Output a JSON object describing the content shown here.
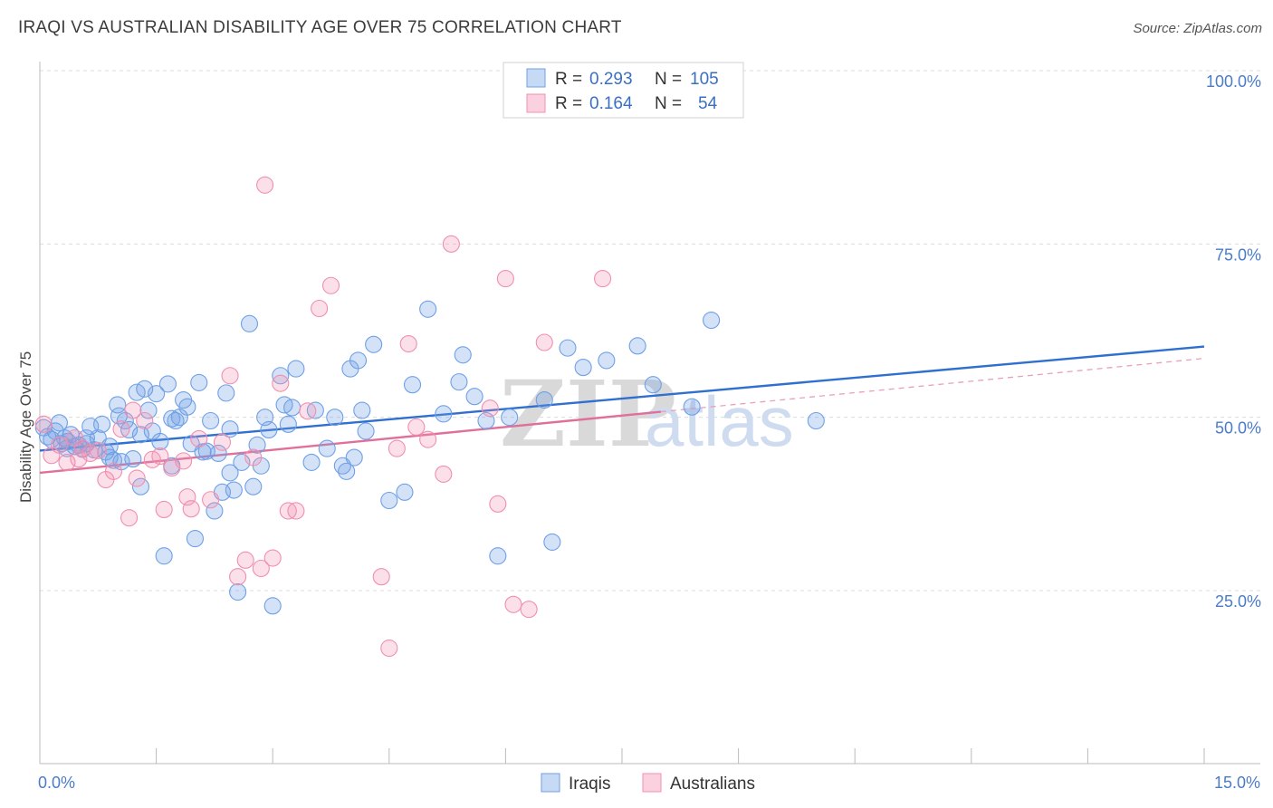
{
  "title": "IRAQI VS AUSTRALIAN DISABILITY AGE OVER 75 CORRELATION CHART",
  "source": "Source: ZipAtlas.com",
  "watermark": {
    "zip": "ZIP",
    "atlas": "atlas"
  },
  "legend": {
    "rows": [
      {
        "r_label": "R =",
        "r_value": "0.293",
        "n_label": "N =",
        "n_value": "105",
        "color": "#6fa0e6"
      },
      {
        "r_label": "R =",
        "r_value": "0.164",
        "n_label": "N =",
        "n_value": "54",
        "color": "#f08fb0"
      }
    ]
  },
  "bottom_legend": [
    "Iraqis",
    "Australians"
  ],
  "chart_data": {
    "type": "scatter",
    "title": "IRAQI VS AUSTRALIAN DISABILITY AGE OVER 75 CORRELATION CHART",
    "xlabel": "",
    "ylabel": "Disability Age Over 75",
    "xlim": [
      0,
      15
    ],
    "ylim": [
      5,
      105
    ],
    "x_tick_labels": [
      "0.0%",
      "15.0%"
    ],
    "y_ticks": [
      25,
      50,
      75,
      100
    ],
    "y_tick_labels": [
      "25.0%",
      "50.0%",
      "75.0%",
      "100.0%"
    ],
    "grid": "horizontal dashed",
    "legend_position": "top-center",
    "series": [
      {
        "name": "Iraqis",
        "color": "#6fa0e6",
        "trend": {
          "x": [
            0,
            15
          ],
          "y": [
            45.2,
            60.2
          ]
        },
        "points": [
          [
            0.05,
            48.5
          ],
          [
            0.1,
            47.2
          ],
          [
            0.15,
            46.8
          ],
          [
            0.2,
            48.0
          ],
          [
            0.25,
            49.2
          ],
          [
            0.28,
            46.2
          ],
          [
            0.32,
            47.0
          ],
          [
            0.36,
            46.5
          ],
          [
            0.4,
            47.5
          ],
          [
            0.45,
            45.8
          ],
          [
            0.5,
            46.0
          ],
          [
            0.55,
            45.4
          ],
          [
            0.6,
            46.2
          ],
          [
            0.65,
            48.7
          ],
          [
            0.7,
            45.3
          ],
          [
            0.75,
            47.0
          ],
          [
            0.8,
            49.0
          ],
          [
            0.85,
            45.0
          ],
          [
            0.9,
            44.2
          ],
          [
            0.95,
            43.8
          ],
          [
            1.0,
            51.8
          ],
          [
            1.02,
            50.2
          ],
          [
            1.05,
            43.6
          ],
          [
            1.1,
            49.5
          ],
          [
            1.15,
            48.2
          ],
          [
            1.2,
            44.0
          ],
          [
            1.25,
            53.6
          ],
          [
            1.3,
            40.0
          ],
          [
            1.35,
            54.1
          ],
          [
            1.4,
            51.0
          ],
          [
            1.45,
            48.0
          ],
          [
            1.5,
            53.4
          ],
          [
            1.55,
            46.5
          ],
          [
            1.6,
            30.0
          ],
          [
            1.65,
            54.8
          ],
          [
            1.7,
            43.0
          ],
          [
            1.75,
            49.5
          ],
          [
            1.8,
            50.0
          ],
          [
            1.85,
            52.5
          ],
          [
            1.9,
            51.5
          ],
          [
            1.95,
            46.2
          ],
          [
            2.0,
            32.5
          ],
          [
            2.05,
            55.0
          ],
          [
            2.1,
            45.0
          ],
          [
            2.15,
            45.1
          ],
          [
            2.2,
            49.5
          ],
          [
            2.25,
            36.5
          ],
          [
            2.3,
            44.8
          ],
          [
            2.35,
            39.2
          ],
          [
            2.4,
            53.5
          ],
          [
            2.45,
            48.3
          ],
          [
            2.5,
            39.5
          ],
          [
            2.55,
            24.8
          ],
          [
            2.6,
            43.5
          ],
          [
            2.7,
            63.5
          ],
          [
            2.75,
            40.0
          ],
          [
            2.8,
            46.0
          ],
          [
            2.85,
            43.0
          ],
          [
            2.9,
            50.0
          ],
          [
            2.95,
            48.2
          ],
          [
            3.0,
            22.8
          ],
          [
            3.1,
            56.0
          ],
          [
            3.15,
            51.8
          ],
          [
            3.2,
            49.0
          ],
          [
            3.25,
            51.4
          ],
          [
            3.3,
            57.0
          ],
          [
            3.5,
            43.5
          ],
          [
            3.55,
            51.0
          ],
          [
            3.7,
            45.5
          ],
          [
            3.8,
            50.0
          ],
          [
            3.9,
            43.0
          ],
          [
            3.95,
            42.2
          ],
          [
            4.0,
            57.0
          ],
          [
            4.05,
            44.2
          ],
          [
            4.1,
            58.2
          ],
          [
            4.15,
            51.0
          ],
          [
            4.2,
            48.0
          ],
          [
            4.3,
            60.5
          ],
          [
            4.5,
            38.0
          ],
          [
            4.7,
            39.2
          ],
          [
            4.8,
            54.7
          ],
          [
            5.0,
            65.6
          ],
          [
            5.2,
            50.5
          ],
          [
            5.4,
            55.1
          ],
          [
            5.45,
            59.0
          ],
          [
            5.6,
            53.0
          ],
          [
            5.75,
            49.5
          ],
          [
            5.9,
            30.0
          ],
          [
            6.05,
            50.0
          ],
          [
            6.5,
            52.5
          ],
          [
            6.6,
            32.0
          ],
          [
            6.8,
            60.0
          ],
          [
            7.0,
            57.2
          ],
          [
            7.3,
            58.2
          ],
          [
            7.7,
            60.3
          ],
          [
            7.9,
            54.7
          ],
          [
            8.4,
            51.5
          ],
          [
            8.65,
            64.0
          ],
          [
            10.0,
            49.5
          ],
          [
            1.3,
            47.5
          ],
          [
            0.35,
            45.5
          ],
          [
            0.6,
            47.0
          ],
          [
            0.9,
            45.8
          ],
          [
            1.7,
            49.8
          ],
          [
            2.45,
            42.0
          ]
        ]
      },
      {
        "name": "Australians",
        "color": "#f08fb0",
        "trend": {
          "x": [
            0,
            8.0
          ],
          "y": [
            42.0,
            50.8
          ]
        },
        "points": [
          [
            0.05,
            49.0
          ],
          [
            0.15,
            44.5
          ],
          [
            0.25,
            46.0
          ],
          [
            0.35,
            43.5
          ],
          [
            0.45,
            47.0
          ],
          [
            0.55,
            45.5
          ],
          [
            0.65,
            44.8
          ],
          [
            0.75,
            45.2
          ],
          [
            0.85,
            41.0
          ],
          [
            0.95,
            42.2
          ],
          [
            1.05,
            48.3
          ],
          [
            1.15,
            35.5
          ],
          [
            1.2,
            51.0
          ],
          [
            1.25,
            41.2
          ],
          [
            1.35,
            49.5
          ],
          [
            1.45,
            43.9
          ],
          [
            1.55,
            44.4
          ],
          [
            1.6,
            36.7
          ],
          [
            1.7,
            42.7
          ],
          [
            1.85,
            43.7
          ],
          [
            1.9,
            38.5
          ],
          [
            1.95,
            36.8
          ],
          [
            2.05,
            46.9
          ],
          [
            2.2,
            38.1
          ],
          [
            2.35,
            46.4
          ],
          [
            2.45,
            56.0
          ],
          [
            2.55,
            27.0
          ],
          [
            2.65,
            29.4
          ],
          [
            2.75,
            44.2
          ],
          [
            2.85,
            28.2
          ],
          [
            2.9,
            83.5
          ],
          [
            3.0,
            29.7
          ],
          [
            3.1,
            54.9
          ],
          [
            3.2,
            36.5
          ],
          [
            3.3,
            36.5
          ],
          [
            3.45,
            50.9
          ],
          [
            3.6,
            65.7
          ],
          [
            3.75,
            69.0
          ],
          [
            4.4,
            27.0
          ],
          [
            4.5,
            16.7
          ],
          [
            4.6,
            45.5
          ],
          [
            4.75,
            60.6
          ],
          [
            4.85,
            48.6
          ],
          [
            5.0,
            46.8
          ],
          [
            5.2,
            41.8
          ],
          [
            5.3,
            75.0
          ],
          [
            5.8,
            51.3
          ],
          [
            5.9,
            37.5
          ],
          [
            6.0,
            70.0
          ],
          [
            6.1,
            23.0
          ],
          [
            6.3,
            22.3
          ],
          [
            6.5,
            60.8
          ],
          [
            7.25,
            70.0
          ],
          [
            0.5,
            44.0
          ]
        ]
      }
    ]
  }
}
